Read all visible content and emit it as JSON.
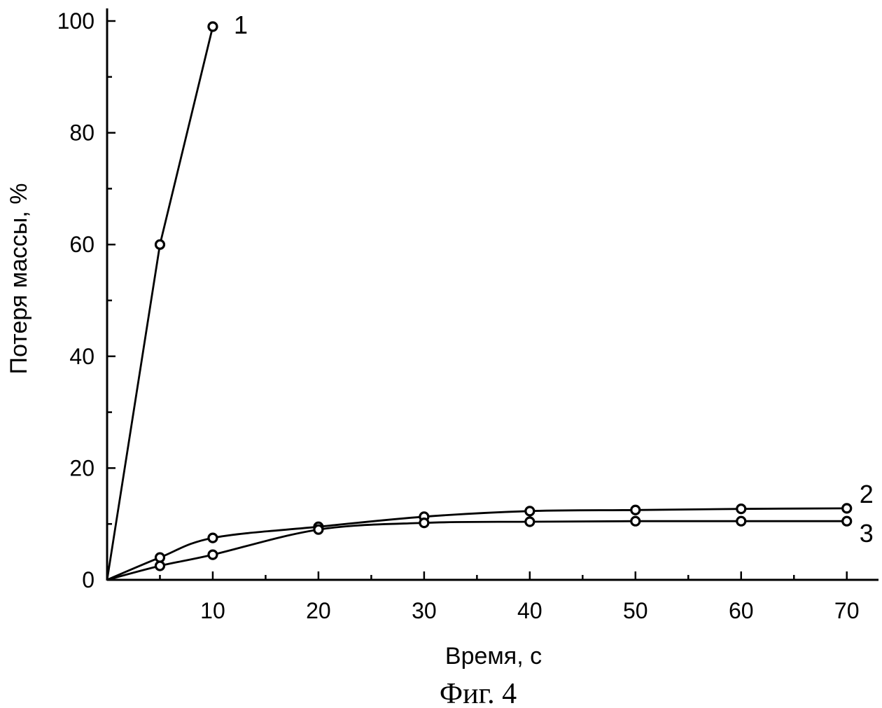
{
  "chart_data": {
    "type": "line",
    "xlabel": "Время, с",
    "ylabel": "Потеря массы, %",
    "caption": "Фиг. 4",
    "xlim": [
      0,
      73
    ],
    "ylim": [
      0,
      100
    ],
    "x_ticks": [
      10,
      20,
      30,
      40,
      50,
      60,
      70
    ],
    "y_ticks": [
      0,
      20,
      40,
      60,
      80,
      100
    ],
    "grid": false,
    "series": [
      {
        "name": "1",
        "x": [
          0,
          5,
          10
        ],
        "y": [
          0,
          60,
          99
        ]
      },
      {
        "name": "2",
        "x": [
          0,
          5,
          10,
          20,
          30,
          40,
          50,
          60,
          70
        ],
        "y": [
          0,
          4,
          7.5,
          9.5,
          11.3,
          12.3,
          12.5,
          12.7,
          12.8
        ]
      },
      {
        "name": "3",
        "x": [
          0,
          5,
          10,
          20,
          30,
          40,
          50,
          60,
          70
        ],
        "y": [
          0,
          2.5,
          4.5,
          9,
          10.2,
          10.4,
          10.5,
          10.5,
          10.5
        ]
      }
    ]
  }
}
